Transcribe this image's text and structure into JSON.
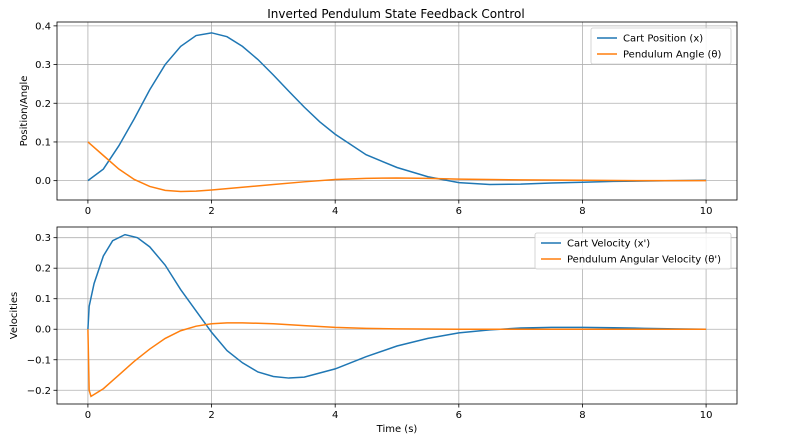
{
  "chart_data": [
    {
      "type": "line",
      "title": "Inverted Pendulum State Feedback Control",
      "xlabel": "",
      "ylabel": "Position/Angle",
      "xlim": [
        -0.5,
        10.5
      ],
      "ylim": [
        -0.05,
        0.41
      ],
      "xticks": [
        0,
        2,
        4,
        6,
        8,
        10
      ],
      "yticks": [
        0.0,
        0.1,
        0.2,
        0.3,
        0.4
      ],
      "xtick_labels": [
        "0",
        "2",
        "4",
        "6",
        "8",
        "10"
      ],
      "ytick_labels": [
        "0.0",
        "0.1",
        "0.2",
        "0.3",
        "0.4"
      ],
      "grid": true,
      "legend_position": "top-right",
      "series": [
        {
          "name": "Cart Position (x)",
          "color": "#1f77b4",
          "x": [
            0,
            0.25,
            0.5,
            0.75,
            1,
            1.25,
            1.5,
            1.75,
            2,
            2.25,
            2.5,
            2.75,
            3,
            3.25,
            3.5,
            3.75,
            4,
            4.5,
            5,
            5.5,
            6,
            6.5,
            7,
            7.5,
            8,
            8.5,
            9,
            9.5,
            10
          ],
          "y": [
            0,
            0.03,
            0.09,
            0.16,
            0.235,
            0.3,
            0.347,
            0.375,
            0.382,
            0.372,
            0.347,
            0.313,
            0.273,
            0.231,
            0.19,
            0.152,
            0.12,
            0.067,
            0.034,
            0.01,
            -0.005,
            -0.01,
            -0.009,
            -0.006,
            -0.004,
            -0.002,
            -0.001,
            0,
            0.001
          ]
        },
        {
          "name": "Pendulum Angle (θ)",
          "color": "#ff7f0e",
          "x": [
            0,
            0.25,
            0.5,
            0.75,
            1,
            1.25,
            1.5,
            1.75,
            2,
            2.5,
            3,
            3.5,
            4,
            4.5,
            5,
            5.5,
            6,
            6.5,
            7,
            8,
            9,
            10
          ],
          "y": [
            0.1,
            0.065,
            0.03,
            0.003,
            -0.015,
            -0.025,
            -0.028,
            -0.027,
            -0.024,
            -0.017,
            -0.01,
            -0.003,
            0.003,
            0.006,
            0.007,
            0.006,
            0.004,
            0.003,
            0.002,
            0.001,
            0,
            0
          ]
        }
      ]
    },
    {
      "type": "line",
      "title": "",
      "xlabel": "Time (s)",
      "ylabel": "Velocities",
      "xlim": [
        -0.5,
        10.5
      ],
      "ylim": [
        -0.245,
        0.335
      ],
      "xticks": [
        0,
        2,
        4,
        6,
        8,
        10
      ],
      "yticks": [
        -0.2,
        -0.1,
        0.0,
        0.1,
        0.2,
        0.3
      ],
      "xtick_labels": [
        "0",
        "2",
        "4",
        "6",
        "8",
        "10"
      ],
      "ytick_labels": [
        "−0.2",
        "−0.1",
        "0.0",
        "0.1",
        "0.2",
        "0.3"
      ],
      "grid": true,
      "legend_position": "top-right",
      "series": [
        {
          "name": "Cart Velocity (x')",
          "color": "#1f77b4",
          "x": [
            0,
            0.02,
            0.1,
            0.25,
            0.4,
            0.6,
            0.8,
            1,
            1.25,
            1.5,
            1.75,
            2,
            2.25,
            2.5,
            2.75,
            3,
            3.25,
            3.5,
            4,
            4.5,
            5,
            5.5,
            6,
            6.5,
            7,
            7.5,
            8,
            8.5,
            9,
            9.5,
            10
          ],
          "y": [
            0,
            0.075,
            0.15,
            0.24,
            0.29,
            0.31,
            0.3,
            0.27,
            0.21,
            0.13,
            0.06,
            -0.01,
            -0.07,
            -0.11,
            -0.14,
            -0.155,
            -0.16,
            -0.157,
            -0.13,
            -0.09,
            -0.055,
            -0.03,
            -0.012,
            -0.002,
            0.004,
            0.006,
            0.006,
            0.005,
            0.003,
            0.001,
            0
          ]
        },
        {
          "name": "Pendulum Angular Velocity (θ')",
          "color": "#ff7f0e",
          "x": [
            0,
            0.02,
            0.05,
            0.25,
            0.5,
            0.75,
            1,
            1.25,
            1.5,
            1.75,
            2,
            2.25,
            2.5,
            3,
            3.5,
            4,
            4.5,
            5,
            6,
            7,
            8,
            9,
            10
          ],
          "y": [
            0,
            -0.2,
            -0.22,
            -0.195,
            -0.15,
            -0.105,
            -0.065,
            -0.03,
            -0.005,
            0.01,
            0.018,
            0.021,
            0.021,
            0.018,
            0.012,
            0.006,
            0.003,
            0.001,
            0,
            0,
            0,
            0,
            0
          ]
        }
      ]
    }
  ]
}
